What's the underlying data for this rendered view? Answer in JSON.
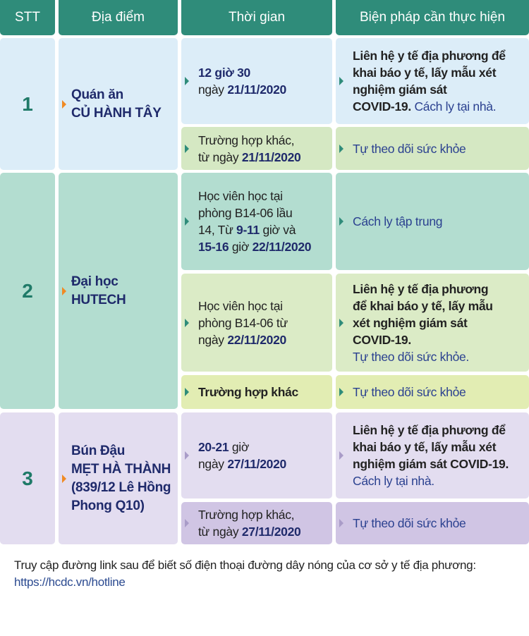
{
  "headers": [
    "STT",
    "Địa điểm",
    "Thời gian",
    "Biện pháp cần thực hiện"
  ],
  "colors": {
    "header": "#2f8c7a",
    "row1": "#dcedf8",
    "row1_alt": "#d5e8c3",
    "row2": "#b3ddd0",
    "row2_alt": "#dbebc6",
    "row2_alt2": "#e2edb3",
    "row3": "#e3ddf0",
    "row3_alt": "#d0c5e4",
    "text_blue": "#1f2a6b"
  },
  "rows": [
    {
      "stt": "1",
      "location": [
        [
          {
            "s": "b",
            "t": "Quán ăn"
          }
        ],
        [
          {
            "s": "b",
            "t": "CỦ HÀNH TÂY"
          }
        ]
      ],
      "subs": [
        {
          "time": [
            [
              {
                "s": "b",
                "t": "12 giờ 30"
              }
            ],
            [
              {
                "s": "n",
                "t": "ngày "
              },
              {
                "s": "b",
                "t": "21/11/2020"
              }
            ]
          ],
          "action": [
            [
              {
                "s": "k",
                "t": "Liên hệ y tế địa phương để"
              }
            ],
            [
              {
                "s": "k",
                "t": "khai báo y tế, lấy mẫu xét"
              }
            ],
            [
              {
                "s": "k",
                "t": "nghiệm giám sát"
              }
            ],
            [
              {
                "s": "k",
                "t": "COVID-19. "
              },
              {
                "s": "l",
                "t": "Cách ly tại nhà."
              }
            ]
          ]
        },
        {
          "time": [
            [
              {
                "s": "n",
                "t": "Trường hợp khác,"
              }
            ],
            [
              {
                "s": "n",
                "t": "từ ngày "
              },
              {
                "s": "b",
                "t": "21/11/2020"
              }
            ]
          ],
          "action": [
            [
              {
                "s": "l",
                "t": "Tự theo dõi sức khỏe"
              }
            ]
          ]
        }
      ]
    },
    {
      "stt": "2",
      "location": [
        [
          {
            "s": "b",
            "t": "Đại học"
          }
        ],
        [
          {
            "s": "b",
            "t": "HUTECH"
          }
        ]
      ],
      "subs": [
        {
          "time": [
            [
              {
                "s": "n",
                "t": "Học viên học tại"
              }
            ],
            [
              {
                "s": "n",
                "t": "phòng B14-06 lầu"
              }
            ],
            [
              {
                "s": "n",
                "t": "14, Từ "
              },
              {
                "s": "b",
                "t": "9-11"
              },
              {
                "s": "n",
                "t": " giờ và"
              }
            ],
            [
              {
                "s": "b",
                "t": "15-16"
              },
              {
                "s": "n",
                "t": " giờ "
              },
              {
                "s": "b",
                "t": "22/11/2020"
              }
            ]
          ],
          "action": [
            [
              {
                "s": "l",
                "t": "Cách ly tập trung"
              }
            ]
          ]
        },
        {
          "time": [
            [
              {
                "s": "n",
                "t": "Học viên học tại"
              }
            ],
            [
              {
                "s": "n",
                "t": "phòng B14-06 từ"
              }
            ],
            [
              {
                "s": "n",
                "t": "ngày "
              },
              {
                "s": "b",
                "t": "22/11/2020"
              }
            ]
          ],
          "action": [
            [
              {
                "s": "k",
                "t": "Liên hệ y tế địa phương"
              }
            ],
            [
              {
                "s": "k",
                "t": "để khai báo y tế, lấy mẫu"
              }
            ],
            [
              {
                "s": "k",
                "t": "xét nghiệm giám sát"
              }
            ],
            [
              {
                "s": "k",
                "t": "COVID-19."
              }
            ],
            [
              {
                "s": "l",
                "t": "Tự theo dõi sức khỏe."
              }
            ]
          ]
        },
        {
          "time": [
            [
              {
                "s": "k",
                "t": "Trường hợp khác"
              }
            ]
          ],
          "action": [
            [
              {
                "s": "l",
                "t": "Tự theo dõi sức khỏe"
              }
            ]
          ]
        }
      ]
    },
    {
      "stt": "3",
      "location": [
        [
          {
            "s": "b",
            "t": "Bún Đậu"
          }
        ],
        [
          {
            "s": "b",
            "t": "MẸT HÀ THÀNH"
          }
        ],
        [
          {
            "s": "b",
            "t": "(839/12 Lê Hồng"
          }
        ],
        [
          {
            "s": "b",
            "t": "Phong Q10)"
          }
        ]
      ],
      "subs": [
        {
          "time": [
            [
              {
                "s": "b",
                "t": "20-21"
              },
              {
                "s": "n",
                "t": " giờ"
              }
            ],
            [
              {
                "s": "n",
                "t": "ngày "
              },
              {
                "s": "b",
                "t": "27/11/2020"
              }
            ]
          ],
          "action": [
            [
              {
                "s": "k",
                "t": "Liên hệ y tế địa phương để"
              }
            ],
            [
              {
                "s": "k",
                "t": "khai báo y tế, lấy mẫu xét"
              }
            ],
            [
              {
                "s": "k",
                "t": "nghiệm giám sát COVID-19."
              }
            ],
            [
              {
                "s": "l",
                "t": "Cách ly tại nhà."
              }
            ]
          ]
        },
        {
          "time": [
            [
              {
                "s": "n",
                "t": "Trường hợp khác,"
              }
            ],
            [
              {
                "s": "n",
                "t": "từ ngày "
              },
              {
                "s": "b",
                "t": "27/11/2020"
              }
            ]
          ],
          "action": [
            [
              {
                "s": "l",
                "t": "Tự theo dõi sức khỏe"
              }
            ]
          ]
        }
      ]
    }
  ],
  "footer": {
    "text": "Truy cập đường link sau để biết số điện thoại đường dây nóng của cơ sở y tế địa phương: ",
    "link": "https://hcdc.vn/hotline"
  }
}
